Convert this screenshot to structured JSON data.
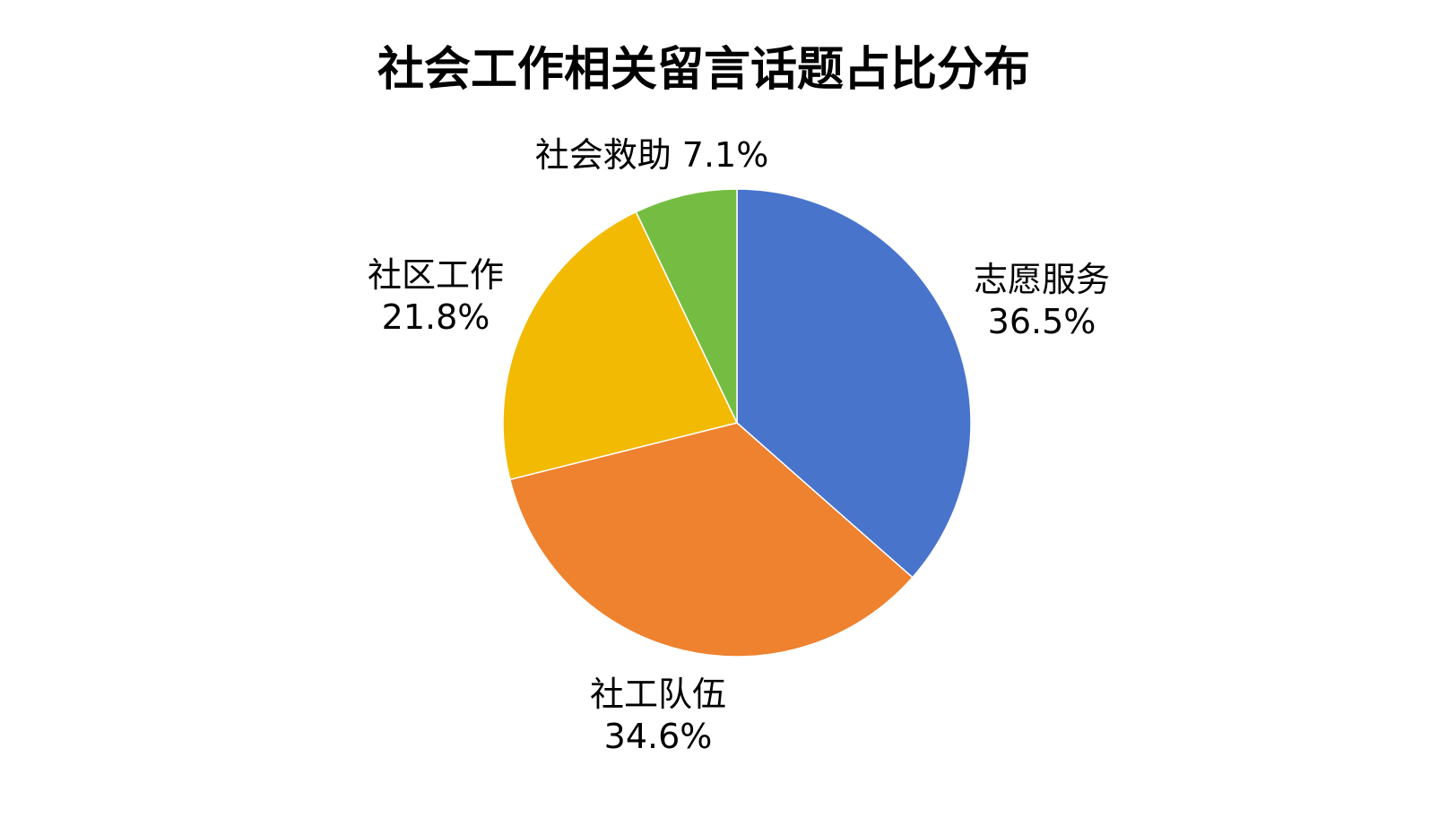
{
  "chart_data": {
    "type": "pie",
    "title": "社会工作相关留言话题占比分布",
    "start_angle": "12 o'clock",
    "direction": "clockwise",
    "slices": [
      {
        "label": "志愿服务",
        "value": 36.5,
        "value_label": "36.5%",
        "color": "#4874CB"
      },
      {
        "label": "社工队伍",
        "value": 34.6,
        "value_label": "34.6%",
        "color": "#EE822F"
      },
      {
        "label": "社区工作",
        "value": 21.8,
        "value_label": "21.8%",
        "color": "#F2BA02"
      },
      {
        "label": "社会救助",
        "value": 7.1,
        "value_label": "7.1%",
        "color": "#75BD42"
      }
    ]
  }
}
